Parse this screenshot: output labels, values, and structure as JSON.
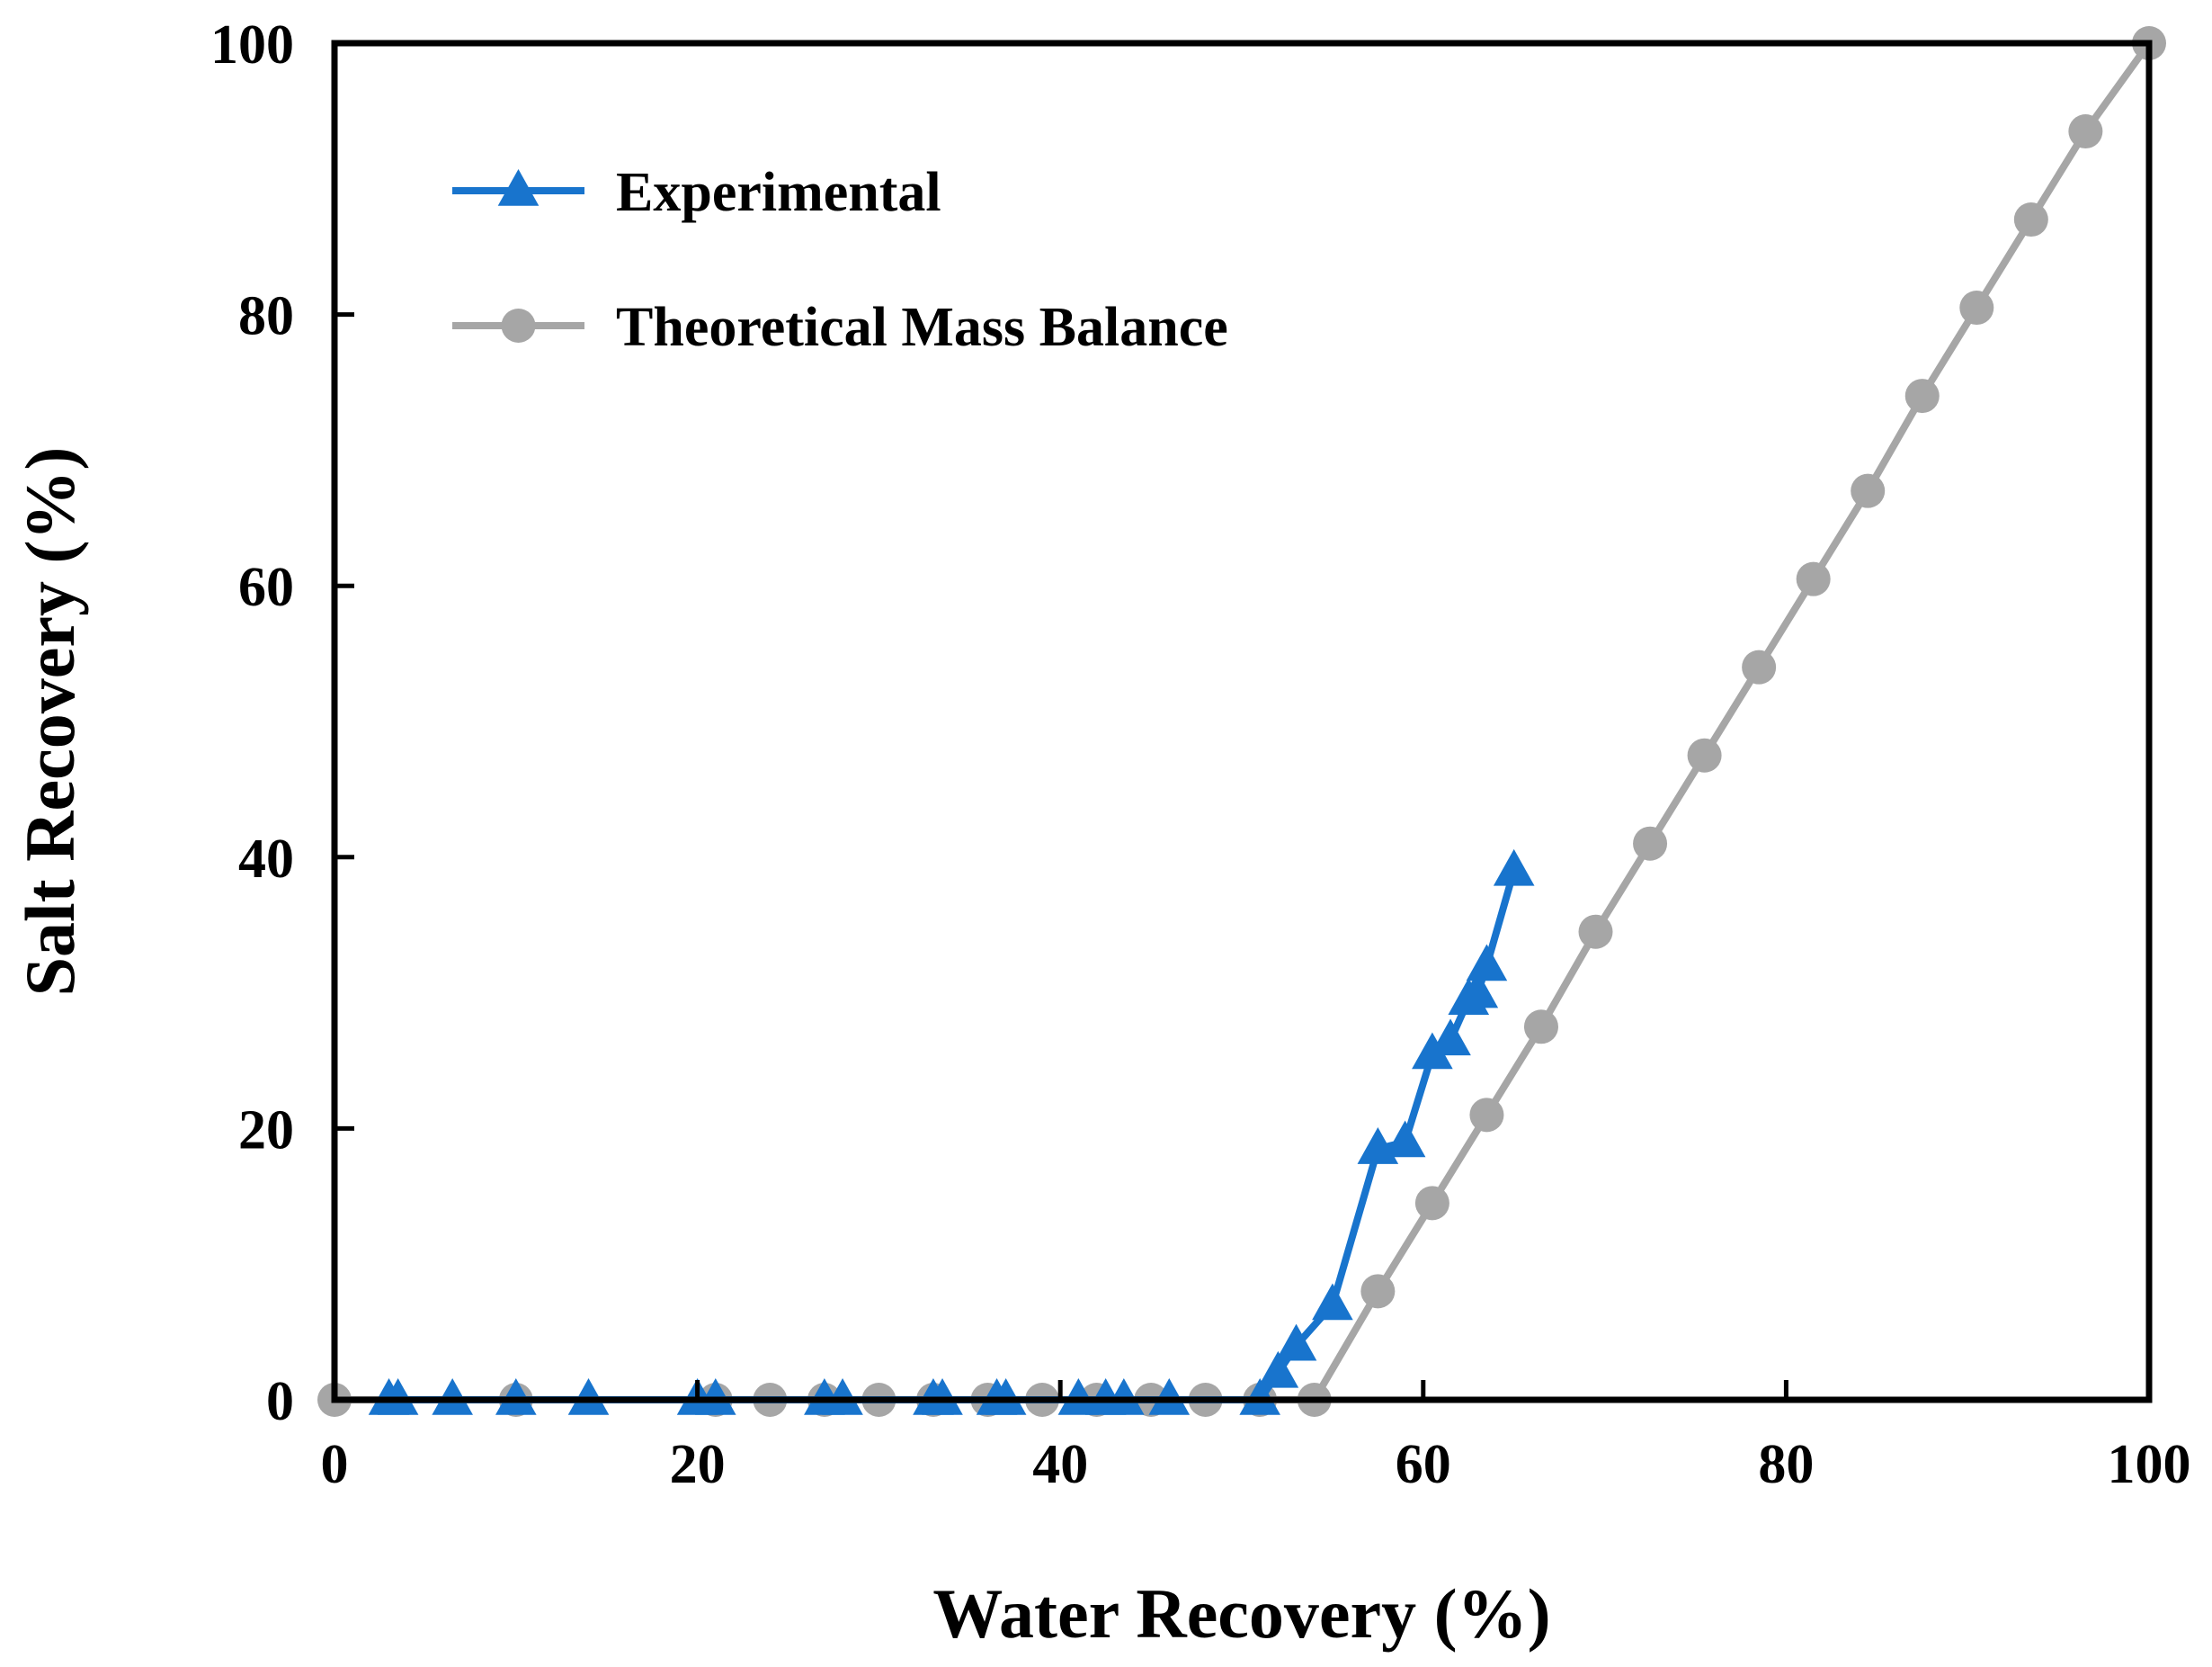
{
  "chart_data": {
    "type": "line",
    "title": "",
    "xlabel": "Water Recovery (%)",
    "ylabel": "Salt Recovery (%)",
    "xlim": [
      0,
      100
    ],
    "ylim": [
      0,
      100
    ],
    "xticks": [
      0,
      20,
      40,
      60,
      80,
      100
    ],
    "yticks": [
      0,
      20,
      40,
      60,
      80,
      100
    ],
    "grid": false,
    "legend_position": "top-left",
    "series": [
      {
        "name": "Experimental",
        "color": "#1874cd",
        "marker": "triangle",
        "x": [
          3,
          3.5,
          6.5,
          10,
          14,
          20,
          21,
          27,
          28,
          33,
          33.5,
          36.5,
          37,
          41,
          42.5,
          43.5,
          46,
          51,
          52,
          53,
          55,
          57.5,
          59,
          60.5,
          61.5,
          62.5,
          63,
          63.5,
          65
        ],
        "y": [
          0,
          0,
          0,
          0,
          0,
          0,
          0,
          0,
          0,
          0,
          0,
          0,
          0,
          0,
          0,
          0,
          0,
          0,
          2,
          4,
          7,
          18.5,
          19,
          25.5,
          26.5,
          29.5,
          30,
          32,
          39
        ]
      },
      {
        "name": "Theoretical Mass Balance",
        "color": "#a6a6a6",
        "marker": "circle",
        "x": [
          0,
          10,
          21,
          24,
          27,
          30,
          33,
          36,
          39,
          42,
          45,
          48,
          51,
          54,
          57.5,
          60.5,
          63.5,
          66.5,
          69.5,
          72.5,
          75.5,
          78.5,
          81.5,
          84.5,
          87.5,
          90.5,
          93.5,
          96.5,
          100
        ],
        "y": [
          0,
          0,
          0,
          0,
          0,
          0,
          0,
          0,
          0,
          0,
          0,
          0,
          0,
          0,
          8,
          14.5,
          21,
          27.5,
          34.5,
          41,
          47.5,
          54,
          60.5,
          67,
          74,
          80.5,
          87,
          93.5,
          100
        ]
      }
    ]
  }
}
